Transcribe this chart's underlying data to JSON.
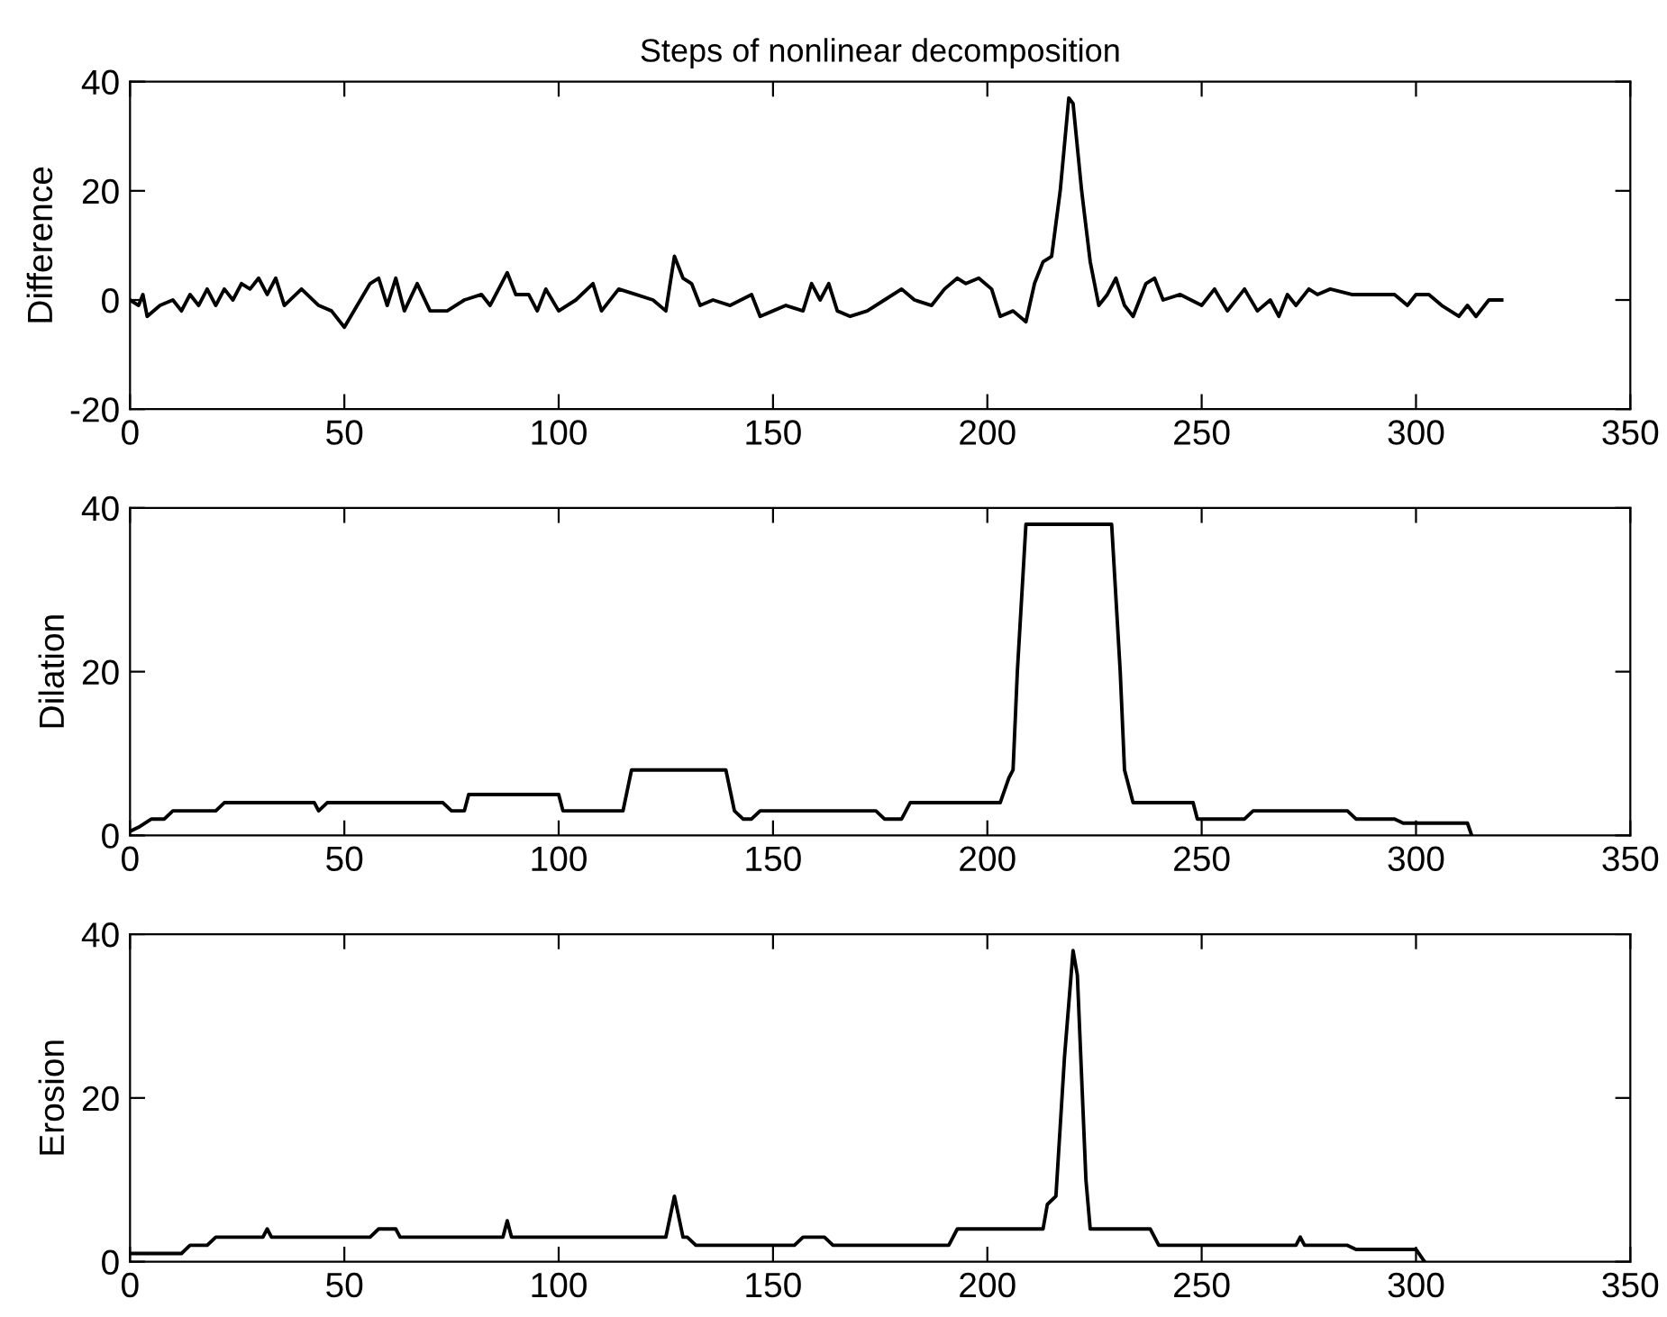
{
  "chart_data": [
    {
      "type": "line",
      "title": "Steps of nonlinear decomposition",
      "ylabel": "Difference",
      "xlim": [
        0,
        350
      ],
      "xticks": [
        0,
        50,
        100,
        150,
        200,
        250,
        300,
        350
      ],
      "ylim": [
        -20,
        40
      ],
      "yticks": [
        -20,
        0,
        20,
        40
      ],
      "grid": false,
      "legend": false,
      "series": [
        {
          "color": "#000000",
          "x": [
            0,
            2,
            3,
            4,
            7,
            10,
            12,
            14,
            16,
            18,
            20,
            22,
            24,
            26,
            28,
            30,
            32,
            34,
            36,
            40,
            44,
            47,
            50,
            53,
            56,
            58,
            60,
            62,
            64,
            67,
            70,
            74,
            78,
            82,
            84,
            88,
            90,
            93,
            95,
            97,
            100,
            104,
            108,
            110,
            114,
            118,
            122,
            125,
            127,
            129,
            131,
            133,
            136,
            140,
            145,
            147,
            150,
            153,
            157,
            159,
            161,
            163,
            165,
            168,
            172,
            176,
            180,
            183,
            187,
            190,
            193,
            195,
            198,
            201,
            203,
            206,
            209,
            211,
            213,
            215,
            217,
            219,
            220,
            222,
            224,
            226,
            228,
            230,
            232,
            234,
            237,
            239,
            241,
            245,
            250,
            253,
            256,
            260,
            263,
            266,
            268,
            270,
            272,
            275,
            277,
            280,
            285,
            290,
            295,
            298,
            300,
            303,
            306,
            310,
            312,
            314,
            317,
            319,
            320
          ],
          "values": [
            0,
            -1,
            1,
            -3,
            -1,
            0,
            -2,
            1,
            -1,
            2,
            -1,
            2,
            0,
            3,
            2,
            4,
            1,
            4,
            -1,
            2,
            -1,
            -2,
            -5,
            -1,
            3,
            4,
            -1,
            4,
            -2,
            3,
            -2,
            -2,
            0,
            1,
            -1,
            5,
            1,
            1,
            -2,
            2,
            -2,
            0,
            3,
            -2,
            2,
            1,
            0,
            -2,
            8,
            4,
            3,
            -1,
            0,
            -1,
            1,
            -3,
            -2,
            -1,
            -2,
            3,
            0,
            3,
            -2,
            -3,
            -2,
            0,
            2,
            0,
            -1,
            2,
            4,
            3,
            4,
            2,
            -3,
            -2,
            -4,
            3,
            7,
            8,
            20,
            37,
            36,
            20,
            7,
            -1,
            1,
            4,
            -1,
            -3,
            3,
            4,
            0,
            1,
            -1,
            2,
            -2,
            2,
            -2,
            0,
            -3,
            1,
            -1,
            2,
            1,
            2,
            1,
            1,
            1,
            -1,
            1,
            1,
            -1,
            -3,
            -1,
            -3,
            0,
            0,
            0
          ]
        }
      ]
    },
    {
      "type": "line",
      "ylabel": "Dilation",
      "xlim": [
        0,
        350
      ],
      "xticks": [
        0,
        50,
        100,
        150,
        200,
        250,
        300,
        350
      ],
      "ylim": [
        0,
        40
      ],
      "yticks": [
        0,
        20,
        40
      ],
      "grid": false,
      "legend": false,
      "series": [
        {
          "color": "#000000",
          "x": [
            0,
            2,
            5,
            8,
            10,
            20,
            22,
            43,
            44,
            46,
            73,
            75,
            78,
            79,
            100,
            101,
            115,
            117,
            139,
            141,
            143,
            145,
            147,
            174,
            176,
            180,
            182,
            203,
            205,
            206,
            207,
            209,
            229,
            231,
            232,
            234,
            248,
            249,
            260,
            262,
            284,
            286,
            295,
            297,
            312,
            313
          ],
          "values": [
            0.5,
            1,
            2,
            2,
            3,
            3,
            4,
            4,
            3,
            4,
            4,
            3,
            3,
            5,
            5,
            3,
            3,
            8,
            8,
            3,
            2,
            2,
            3,
            3,
            2,
            2,
            4,
            4,
            7,
            8,
            20,
            38,
            38,
            20,
            8,
            4,
            4,
            2,
            2,
            3,
            3,
            2,
            2,
            1.5,
            1.5,
            0
          ]
        }
      ]
    },
    {
      "type": "line",
      "ylabel": "Erosion",
      "xlim": [
        0,
        350
      ],
      "xticks": [
        0,
        50,
        100,
        150,
        200,
        250,
        300,
        350
      ],
      "ylim": [
        0,
        40
      ],
      "yticks": [
        0,
        20,
        40
      ],
      "grid": false,
      "legend": false,
      "series": [
        {
          "color": "#000000",
          "x": [
            0,
            12,
            14,
            18,
            20,
            31,
            32,
            33,
            56,
            58,
            62,
            63,
            87,
            88,
            89,
            125,
            127,
            129,
            130,
            132,
            155,
            157,
            162,
            164,
            191,
            193,
            213,
            214,
            216,
            218,
            220,
            221,
            223,
            224,
            238,
            240,
            272,
            273,
            274,
            284,
            286,
            300,
            302
          ],
          "values": [
            1,
            1,
            2,
            2,
            3,
            3,
            4,
            3,
            3,
            4,
            4,
            3,
            3,
            5,
            3,
            3,
            8,
            3,
            3,
            2,
            2,
            3,
            3,
            2,
            2,
            4,
            4,
            7,
            8,
            25,
            38,
            35,
            10,
            4,
            4,
            2,
            2,
            3,
            2,
            2,
            1.5,
            1.5,
            0
          ]
        }
      ]
    }
  ]
}
